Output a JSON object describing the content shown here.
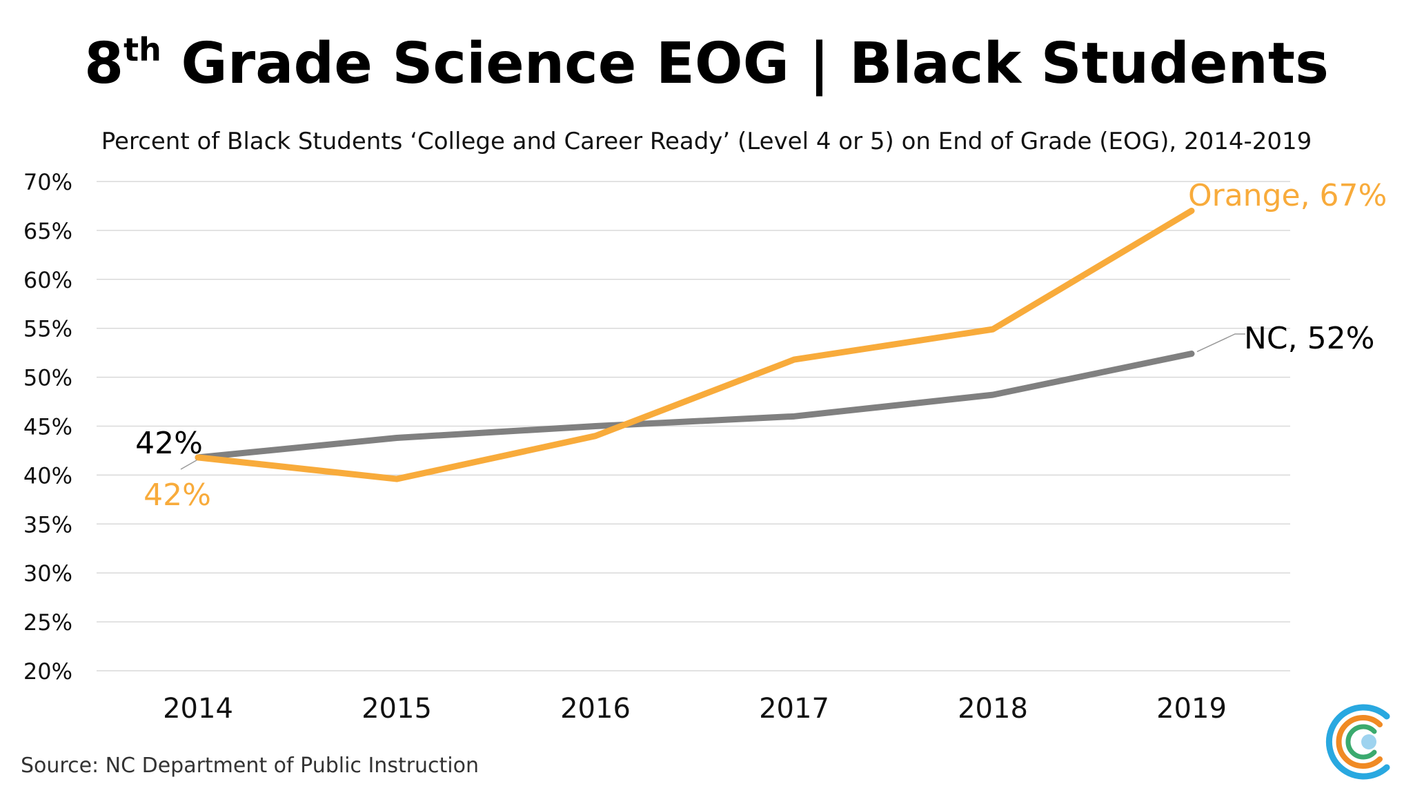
{
  "title": {
    "main": "8",
    "sup": "th",
    "rest": " Grade Science EOG | Black Students"
  },
  "subtitle": "Percent of Black Students ‘College and Career Ready’ (Level 4 or 5) on End of Grade (EOG), 2014-2019",
  "source": "Source: NC Department of Public Instruction",
  "chart_data": {
    "type": "line",
    "categories": [
      "2014",
      "2015",
      "2016",
      "2017",
      "2018",
      "2019"
    ],
    "ylim": [
      20,
      70
    ],
    "yticks": [
      "20%",
      "25%",
      "30%",
      "35%",
      "40%",
      "45%",
      "50%",
      "55%",
      "60%",
      "65%",
      "70%"
    ],
    "grid": true,
    "series": [
      {
        "name": "NC",
        "values": [
          41.8,
          43.8,
          45.0,
          46.0,
          48.2,
          52.4
        ],
        "color": "#808080"
      },
      {
        "name": "Orange",
        "values": [
          41.8,
          39.6,
          44.0,
          51.8,
          54.9,
          67.0
        ],
        "color": "#F8AB3B"
      }
    ],
    "labels": {
      "nc_start": "42%",
      "orange_start": "42%",
      "nc_end": "NC, 52%",
      "orange_end": "Orange, 67%"
    }
  },
  "colors": {
    "nc": "#808080",
    "orange": "#F8AB3B",
    "grid": "#d9d9d9",
    "logo_blue": "#29A8E0",
    "logo_orange": "#F08A24",
    "logo_green": "#3BAA6E"
  },
  "logo": {
    "icon": "circular-c-logo-icon"
  }
}
